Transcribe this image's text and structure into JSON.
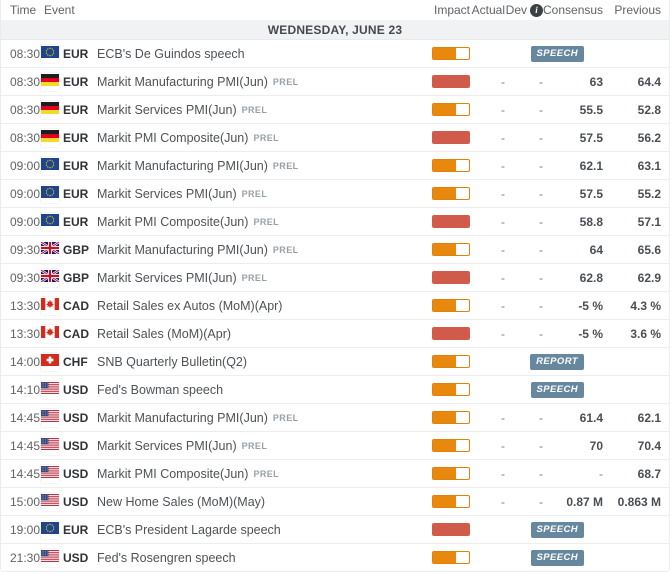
{
  "header": {
    "columns": {
      "time": "Time",
      "event": "Event",
      "impact": "Impact",
      "actual": "Actual",
      "dev": "Dev",
      "consensus": "Consensus",
      "previous": "Previous"
    },
    "dev_info_icon": "i"
  },
  "date_banner": "WEDNESDAY, JUNE 23",
  "colors": {
    "impact_medium": "#e8890e",
    "impact_high": "#d15b4b",
    "badge_blue": "#67879f",
    "date_banner_bg": "#f1f2f3"
  },
  "rows": [
    {
      "time": "08:30",
      "flag": "eu",
      "currency": "EUR",
      "event": "ECB's De Guindos speech",
      "prel": false,
      "impact": "medium",
      "actual": "",
      "dev": "",
      "consensus": "",
      "previous": "",
      "badge": "SPEECH"
    },
    {
      "time": "08:30",
      "flag": "de",
      "currency": "EUR",
      "event": "Markit Manufacturing PMI(Jun)",
      "prel": true,
      "impact": "high",
      "actual": "-",
      "dev": "-",
      "consensus": "63",
      "previous": "64.4",
      "badge": null
    },
    {
      "time": "08:30",
      "flag": "de",
      "currency": "EUR",
      "event": "Markit Services PMI(Jun)",
      "prel": true,
      "impact": "medium",
      "actual": "-",
      "dev": "-",
      "consensus": "55.5",
      "previous": "52.8",
      "badge": null
    },
    {
      "time": "08:30",
      "flag": "de",
      "currency": "EUR",
      "event": "Markit PMI Composite(Jun)",
      "prel": true,
      "impact": "high",
      "actual": "-",
      "dev": "-",
      "consensus": "57.5",
      "previous": "56.2",
      "badge": null
    },
    {
      "time": "09:00",
      "flag": "eu",
      "currency": "EUR",
      "event": "Markit Manufacturing PMI(Jun)",
      "prel": true,
      "impact": "medium",
      "actual": "-",
      "dev": "-",
      "consensus": "62.1",
      "previous": "63.1",
      "badge": null
    },
    {
      "time": "09:00",
      "flag": "eu",
      "currency": "EUR",
      "event": "Markit Services PMI(Jun)",
      "prel": true,
      "impact": "medium",
      "actual": "-",
      "dev": "-",
      "consensus": "57.5",
      "previous": "55.2",
      "badge": null
    },
    {
      "time": "09:00",
      "flag": "eu",
      "currency": "EUR",
      "event": "Markit PMI Composite(Jun)",
      "prel": true,
      "impact": "high",
      "actual": "-",
      "dev": "-",
      "consensus": "58.8",
      "previous": "57.1",
      "badge": null
    },
    {
      "time": "09:30",
      "flag": "gb",
      "currency": "GBP",
      "event": "Markit Manufacturing PMI(Jun)",
      "prel": true,
      "impact": "medium",
      "actual": "-",
      "dev": "-",
      "consensus": "64",
      "previous": "65.6",
      "badge": null
    },
    {
      "time": "09:30",
      "flag": "gb",
      "currency": "GBP",
      "event": "Markit Services PMI(Jun)",
      "prel": true,
      "impact": "high",
      "actual": "-",
      "dev": "-",
      "consensus": "62.8",
      "previous": "62.9",
      "badge": null
    },
    {
      "time": "13:30",
      "flag": "ca",
      "currency": "CAD",
      "event": "Retail Sales ex Autos (MoM)(Apr)",
      "prel": false,
      "impact": "medium",
      "actual": "-",
      "dev": "-",
      "consensus": "-5 %",
      "previous": "4.3 %",
      "badge": null
    },
    {
      "time": "13:30",
      "flag": "ca",
      "currency": "CAD",
      "event": "Retail Sales (MoM)(Apr)",
      "prel": false,
      "impact": "high",
      "actual": "-",
      "dev": "-",
      "consensus": "-5 %",
      "previous": "3.6 %",
      "badge": null
    },
    {
      "time": "14:00",
      "flag": "ch",
      "currency": "CHF",
      "event": "SNB Quarterly Bulletin(Q2)",
      "prel": false,
      "impact": "medium",
      "actual": "",
      "dev": "",
      "consensus": "",
      "previous": "",
      "badge": "REPORT"
    },
    {
      "time": "14:10",
      "flag": "us",
      "currency": "USD",
      "event": "Fed's Bowman speech",
      "prel": false,
      "impact": "medium",
      "actual": "",
      "dev": "",
      "consensus": "",
      "previous": "",
      "badge": "SPEECH"
    },
    {
      "time": "14:45",
      "flag": "us",
      "currency": "USD",
      "event": "Markit Manufacturing PMI(Jun)",
      "prel": true,
      "impact": "medium",
      "actual": "-",
      "dev": "-",
      "consensus": "61.4",
      "previous": "62.1",
      "badge": null
    },
    {
      "time": "14:45",
      "flag": "us",
      "currency": "USD",
      "event": "Markit Services PMI(Jun)",
      "prel": true,
      "impact": "medium",
      "actual": "-",
      "dev": "-",
      "consensus": "70",
      "previous": "70.4",
      "badge": null
    },
    {
      "time": "14:45",
      "flag": "us",
      "currency": "USD",
      "event": "Markit PMI Composite(Jun)",
      "prel": true,
      "impact": "medium",
      "actual": "-",
      "dev": "-",
      "consensus": "-",
      "previous": "68.7",
      "badge": null
    },
    {
      "time": "15:00",
      "flag": "us",
      "currency": "USD",
      "event": "New Home Sales (MoM)(May)",
      "prel": false,
      "impact": "medium",
      "actual": "-",
      "dev": "-",
      "consensus": "0.87 M",
      "previous": "0.863 M",
      "badge": null
    },
    {
      "time": "19:00",
      "flag": "eu",
      "currency": "EUR",
      "event": "ECB's President Lagarde speech",
      "prel": false,
      "impact": "high",
      "actual": "",
      "dev": "",
      "consensus": "",
      "previous": "",
      "badge": "SPEECH"
    },
    {
      "time": "21:30",
      "flag": "us",
      "currency": "USD",
      "event": "Fed's Rosengren speech",
      "prel": false,
      "impact": "medium",
      "actual": "",
      "dev": "",
      "consensus": "",
      "previous": "",
      "badge": "SPEECH"
    }
  ]
}
